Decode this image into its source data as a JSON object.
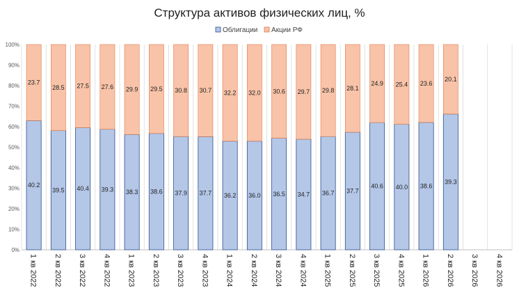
{
  "chart_data": {
    "type": "bar",
    "stacked": "percent",
    "title": "Структура активов физических лиц, %",
    "categories": [
      "1 кв 2022",
      "2 кв 2022",
      "3 кв 2022",
      "4 кв 2022",
      "1 кв 2023",
      "2 кв 2023",
      "3 кв 2023",
      "4 кв 2023",
      "1 кв 2024",
      "2 кв 2024",
      "3 кв 2024",
      "4 кв 2024",
      "1 кв 2025",
      "2 кв 2025",
      "3 кв 2025",
      "4 кв 2025",
      "1 кв 2026",
      "2 кв 2026",
      "3 кв 2026",
      "4 кв 2026"
    ],
    "series": [
      {
        "name": "Облигации",
        "color": "#b4c7e7",
        "stroke": "#2f4f8f",
        "values": [
          40.2,
          39.5,
          40.4,
          39.3,
          38.3,
          38.6,
          37.9,
          37.7,
          36.2,
          36.0,
          36.5,
          34.7,
          36.7,
          37.7,
          40.6,
          40.0,
          38.6,
          39.3,
          null,
          null
        ]
      },
      {
        "name": "Акции РФ",
        "color": "#f8c3a8",
        "stroke": "#e07b4a",
        "values": [
          23.7,
          28.5,
          27.5,
          27.6,
          29.9,
          29.5,
          30.8,
          30.7,
          32.2,
          32.0,
          30.6,
          29.7,
          29.8,
          28.1,
          24.9,
          25.4,
          23.6,
          20.1,
          null,
          null
        ]
      }
    ],
    "y_ticks": [
      "0%",
      "10%",
      "20%",
      "30%",
      "40%",
      "50%",
      "60%",
      "70%",
      "80%",
      "90%",
      "100%"
    ],
    "ylim": [
      0,
      100
    ],
    "grid": "vertical",
    "legend_position": "top-center"
  }
}
